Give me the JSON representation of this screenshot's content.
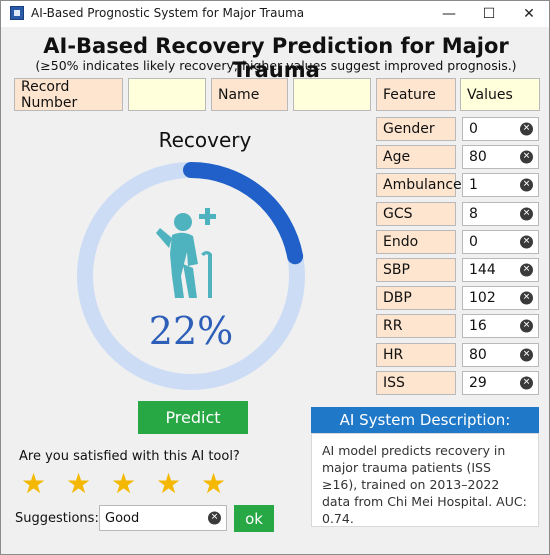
{
  "window": {
    "title": "AI-Based Prognostic System for Major Trauma",
    "minimize_glyph": "—",
    "maximize_glyph": "☐",
    "close_glyph": "✕"
  },
  "header": {
    "title": "AI-Based Recovery Prediction for Major Trauma",
    "subtitle": "(≥50% indicates likely recovery; higher values suggest improved prognosis.)"
  },
  "record": {
    "record_number_label": "Record Number",
    "record_number_value": "",
    "name_label": "Name",
    "name_value": ""
  },
  "features_header": {
    "feature": "Feature",
    "values": "Values"
  },
  "features": [
    {
      "name": "Gender",
      "value": "0"
    },
    {
      "name": "Age",
      "value": "80"
    },
    {
      "name": "Ambulance",
      "value": "1"
    },
    {
      "name": "GCS",
      "value": "8"
    },
    {
      "name": "Endo",
      "value": "0"
    },
    {
      "name": "SBP",
      "value": "144"
    },
    {
      "name": "DBP",
      "value": "102"
    },
    {
      "name": "RR",
      "value": "16"
    },
    {
      "name": "HR",
      "value": "80"
    },
    {
      "name": "ISS",
      "value": "29"
    }
  ],
  "gauge": {
    "label": "Recovery",
    "percent_text": "22%",
    "fraction": 0.22,
    "track_color": "#cddcf5",
    "fill_color": "#2060c8",
    "icon": "elderly-person-with-cane-plus-icon",
    "icon_color": "#4fb3bf"
  },
  "predict_button": "Predict",
  "satisfaction": {
    "question": "Are you satisfied with this AI tool?",
    "stars": 5,
    "star_color": "#f5b800"
  },
  "suggestions": {
    "label": "Suggestions:",
    "value": "Good",
    "ok": "ok"
  },
  "description": {
    "header": "AI System Description:",
    "body": "AI model predicts recovery in major trauma patients (ISS ≥16), trained on 2013–2022 data from Chi Mei Hospital. AUC: 0.74."
  },
  "colors": {
    "accent_green": "#28a745",
    "accent_blue": "#1f78c8",
    "label_bg": "#fde5d0",
    "input_bg": "#ffffdc"
  }
}
